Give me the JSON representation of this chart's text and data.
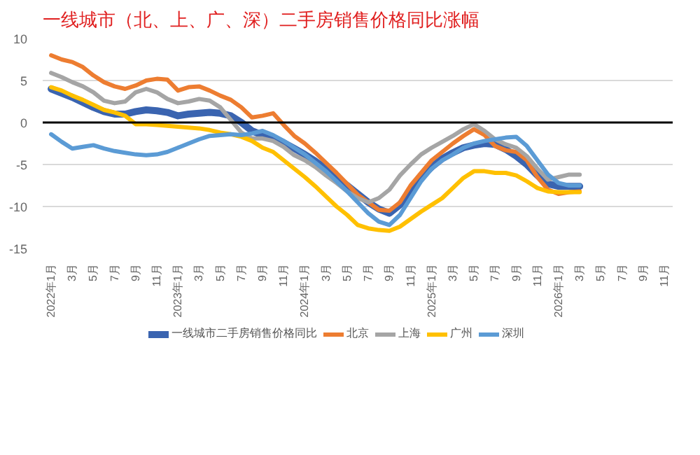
{
  "chart_data": {
    "type": "line",
    "title": "一线城市（北、上、广、深）二手房销售价格同比涨幅",
    "categories": [
      "2022年1月",
      null,
      "3月",
      null,
      "5月",
      null,
      "7月",
      null,
      "9月",
      null,
      "11月",
      null,
      "2023年1月",
      null,
      "3月",
      null,
      "5月",
      null,
      "7月",
      null,
      "9月",
      null,
      "11月",
      null,
      "2024年1月",
      null,
      "3月",
      null,
      "5月",
      null,
      "7月",
      null,
      "9月",
      null,
      "11月",
      null,
      "2025年1月",
      null,
      "3月",
      null,
      "5月",
      null,
      "7月",
      null,
      "9月",
      null,
      "11月",
      null,
      "2026年1月",
      null,
      "3月",
      null,
      "5月",
      null,
      "7月",
      null,
      "9月",
      null,
      "11月"
    ],
    "series": [
      {
        "name": "一线城市二手房销售价格同比",
        "color": "#3a64b0",
        "values": [
          4.0,
          3.5,
          3.0,
          2.4,
          1.8,
          1.3,
          1.0,
          1.0,
          1.3,
          1.5,
          1.4,
          1.2,
          0.8,
          1.0,
          1.1,
          1.2,
          1.1,
          0.8,
          0.0,
          -1.0,
          -1.5,
          -1.8,
          -2.4,
          -3.1,
          -3.8,
          -4.6,
          -5.5,
          -6.5,
          -7.5,
          -8.5,
          -9.5,
          -10.3,
          -10.8,
          -9.8,
          -8.0,
          -6.5,
          -5.3,
          -4.3,
          -3.6,
          -3.0,
          -2.7,
          -2.5,
          -2.6,
          -3.2,
          -4.0,
          -5.0,
          -6.3,
          -7.3,
          -7.6,
          -7.6,
          -7.6,
          null,
          null,
          null,
          null,
          null,
          null,
          null,
          null
        ]
      },
      {
        "name": "北京",
        "color": "#ed7d31",
        "values": [
          8.0,
          7.5,
          7.2,
          6.6,
          5.6,
          4.8,
          4.3,
          4.0,
          4.4,
          5.0,
          5.2,
          5.1,
          3.8,
          4.2,
          4.3,
          3.8,
          3.2,
          2.7,
          1.8,
          0.6,
          0.8,
          1.1,
          -0.3,
          -1.6,
          -2.5,
          -3.6,
          -4.8,
          -6.0,
          -7.3,
          -8.6,
          -9.5,
          -10.4,
          -10.5,
          -9.5,
          -7.5,
          -6.0,
          -4.5,
          -3.5,
          -2.5,
          -1.6,
          -0.8,
          -1.5,
          -2.8,
          -3.3,
          -3.5,
          -4.5,
          -6.5,
          -8.0,
          -8.5,
          -8.3,
          -8.2,
          null,
          null,
          null,
          null,
          null,
          null,
          null,
          null
        ]
      },
      {
        "name": "上海",
        "color": "#a5a5a5",
        "values": [
          5.9,
          5.4,
          4.8,
          4.3,
          3.6,
          2.6,
          2.3,
          2.5,
          3.6,
          4.0,
          3.6,
          2.8,
          2.3,
          2.5,
          2.8,
          2.6,
          1.8,
          0.3,
          -1.2,
          -1.9,
          -1.9,
          -2.2,
          -2.9,
          -3.9,
          -4.5,
          -5.3,
          -6.3,
          -7.2,
          -8.2,
          -9.0,
          -9.5,
          -9.0,
          -8.0,
          -6.3,
          -5.0,
          -3.8,
          -3.0,
          -2.3,
          -1.6,
          -0.8,
          -0.2,
          -1.0,
          -2.0,
          -2.6,
          -3.0,
          -4.0,
          -5.5,
          -6.8,
          -6.5,
          -6.2,
          -6.2,
          null,
          null,
          null,
          null,
          null,
          null,
          null,
          null
        ]
      },
      {
        "name": "广州",
        "color": "#ffc000",
        "values": [
          4.2,
          3.8,
          3.2,
          2.7,
          2.1,
          1.5,
          1.2,
          0.8,
          -0.2,
          -0.2,
          -0.3,
          -0.4,
          -0.5,
          -0.6,
          -0.7,
          -0.9,
          -1.2,
          -1.4,
          -1.7,
          -2.2,
          -3.0,
          -3.5,
          -4.5,
          -5.5,
          -6.5,
          -7.6,
          -8.8,
          -10.0,
          -11.0,
          -12.2,
          -12.6,
          -12.8,
          -12.9,
          -12.4,
          -11.5,
          -10.6,
          -9.8,
          -9.0,
          -7.8,
          -6.6,
          -5.8,
          -5.8,
          -6.0,
          -6.0,
          -6.3,
          -7.0,
          -7.8,
          -8.2,
          -8.3,
          -8.3,
          -8.3,
          null,
          null,
          null,
          null,
          null,
          null,
          null,
          null
        ]
      },
      {
        "name": "深圳",
        "color": "#5b9bd5",
        "values": [
          -1.4,
          -2.3,
          -3.1,
          -2.9,
          -2.7,
          -3.1,
          -3.4,
          -3.6,
          -3.8,
          -3.9,
          -3.8,
          -3.5,
          -3.0,
          -2.5,
          -2.0,
          -1.6,
          -1.5,
          -1.4,
          -1.5,
          -1.3,
          -1.0,
          -1.5,
          -2.2,
          -3.0,
          -3.8,
          -4.8,
          -5.8,
          -7.0,
          -8.2,
          -9.5,
          -10.8,
          -11.8,
          -12.2,
          -11.0,
          -9.0,
          -7.0,
          -5.5,
          -4.5,
          -3.8,
          -3.0,
          -2.5,
          -2.2,
          -2.0,
          -1.8,
          -1.7,
          -2.8,
          -4.5,
          -6.2,
          -7.2,
          -7.5,
          -7.5,
          null,
          null,
          null,
          null,
          null,
          null,
          null,
          null
        ]
      }
    ],
    "ylim": [
      -15,
      10
    ],
    "yticks": [
      -15,
      -10,
      -5,
      0,
      5,
      10
    ],
    "grid": "y",
    "legend": "bottom",
    "marker": "none",
    "line_style": "solid",
    "ref_lines": [
      {
        "axis": "y",
        "value": 0,
        "color": "#000000"
      }
    ]
  }
}
